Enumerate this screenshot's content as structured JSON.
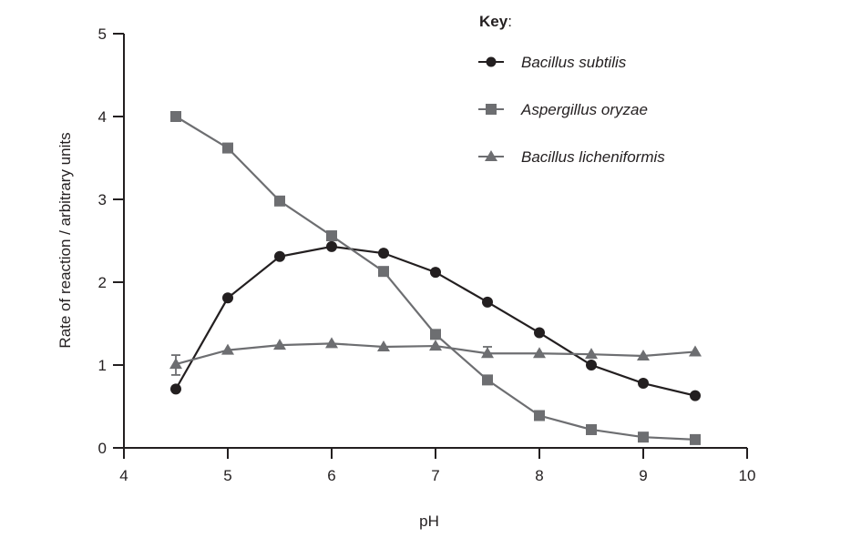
{
  "chart_data": {
    "type": "line",
    "title": "",
    "xlabel": "pH",
    "ylabel": "Rate of reaction / arbitrary units",
    "xlim": [
      4,
      10
    ],
    "ylim": [
      0,
      5
    ],
    "x_ticks": [
      4,
      5,
      6,
      7,
      8,
      9,
      10
    ],
    "y_ticks": [
      0,
      1,
      2,
      3,
      4,
      5
    ],
    "grid": false,
    "legend_position": "top-right",
    "legend_title": "Key",
    "legend_title_suffix": ":",
    "x": [
      4.5,
      5.0,
      5.5,
      6.0,
      6.5,
      7.0,
      7.5,
      8.0,
      8.5,
      9.0,
      9.5
    ],
    "series": [
      {
        "name": "Bacillus subtilis",
        "marker": "circle",
        "color": "#231f20",
        "values": [
          0.71,
          1.81,
          2.31,
          2.43,
          2.35,
          2.12,
          1.76,
          1.39,
          1.0,
          0.78,
          0.63
        ]
      },
      {
        "name": "Aspergillus oryzae",
        "marker": "square",
        "color": "#6d6e71",
        "values": [
          4.0,
          3.62,
          2.98,
          2.56,
          2.13,
          1.37,
          0.82,
          0.39,
          0.22,
          0.13,
          0.1
        ]
      },
      {
        "name": "Bacillus licheniformis",
        "marker": "triangle",
        "color": "#6d6e71",
        "values": [
          1.01,
          1.18,
          1.24,
          1.26,
          1.22,
          1.23,
          1.14,
          1.14,
          1.13,
          1.11,
          1.16
        ],
        "error_bars": [
          {
            "x": 4.5,
            "low": 0.88,
            "high": 1.12
          },
          {
            "x": 7.5,
            "low": 1.14,
            "high": 1.22
          }
        ]
      }
    ]
  },
  "colors": {
    "axis": "#231f20",
    "line_dark": "#231f20",
    "line_grey": "#6d6e71",
    "background": "#ffffff"
  }
}
